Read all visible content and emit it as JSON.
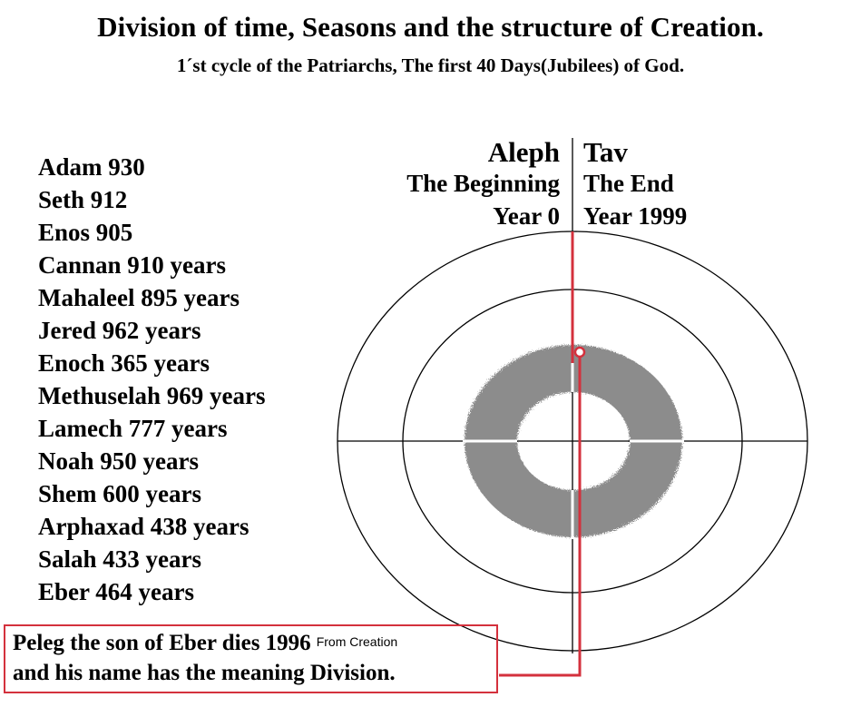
{
  "header": {
    "title": "Division of time, Seasons and the structure of Creation.",
    "subtitle": "1´st cycle of the Patriarchs, The first 40 Days(Jubilees) of God."
  },
  "patriarchs": [
    "Adam 930",
    "Seth 912",
    "Enos 905",
    "Cannan 910 years",
    "Mahaleel 895 years",
    "Jered 962 years",
    "Enoch 365 years",
    "Methuselah 969 years",
    "Lamech 777 years",
    "Noah 950 years",
    "Shem 600 years",
    "Arphaxad 438 years",
    "Salah 433 years",
    "Eber 464 years"
  ],
  "cycle": {
    "left": {
      "letter": "Aleph",
      "label": "The Beginning",
      "year": "Year 0"
    },
    "right": {
      "letter": "Tav",
      "label": "The End",
      "year": "Year 1999"
    }
  },
  "note": {
    "line1": "Peleg the son of Eber dies 1996",
    "line1_small": "From Creation",
    "line2": "and his name has the meaning Division."
  },
  "colors": {
    "accent_red": "#d4313d",
    "ring_gray": "#8c8c8c"
  }
}
